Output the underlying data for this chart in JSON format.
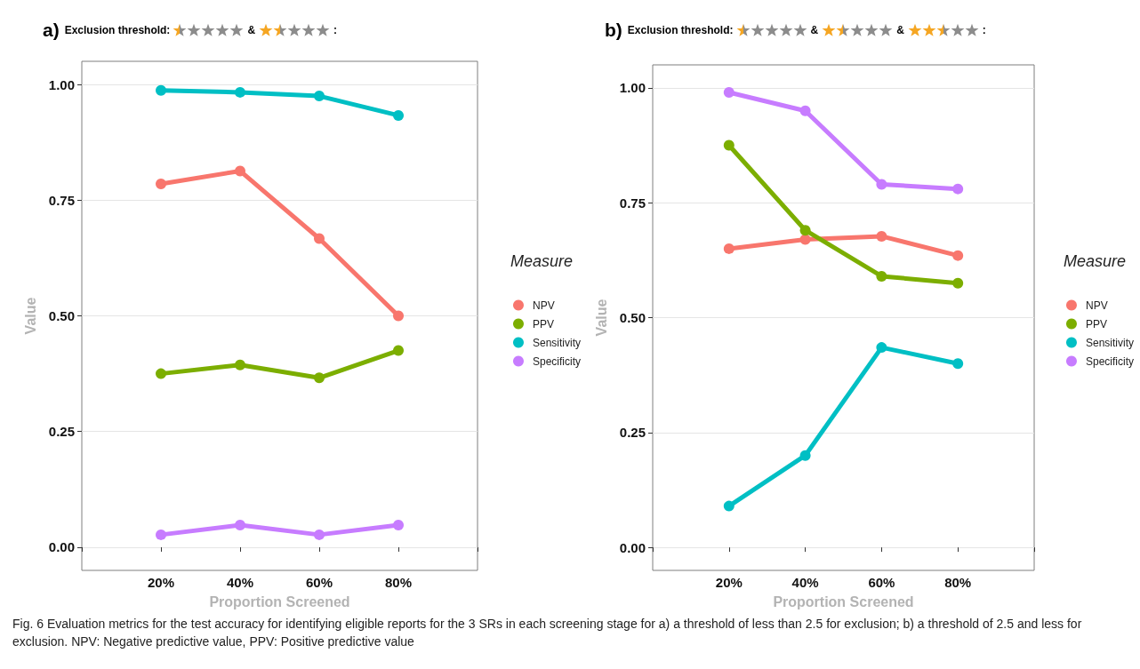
{
  "chart_data": [
    {
      "type": "line",
      "title": "a)",
      "subtitle": "Exclusion threshold:",
      "annotations": [
        "&",
        ":"
      ],
      "xlabel": "Proportion Screened",
      "ylabel": "Value",
      "legend_title": "Measure",
      "categories": [
        "20%",
        "40%",
        "60%",
        "80%"
      ],
      "series": [
        {
          "name": "NPV",
          "color": "#f8766d",
          "values": [
            0.785,
            0.813,
            0.667,
            0.5
          ]
        },
        {
          "name": "PPV",
          "color": "#7cae00",
          "values": [
            0.375,
            0.394,
            0.366,
            0.425
          ]
        },
        {
          "name": "Sensitivity",
          "color": "#00bfc4",
          "values": [
            0.987,
            0.983,
            0.975,
            0.933
          ]
        },
        {
          "name": "Specificity",
          "color": "#c77cff",
          "values": [
            0.027,
            0.048,
            0.027,
            0.048
          ]
        }
      ],
      "ylim": [
        -0.05,
        1.05
      ],
      "yticks": [
        {
          "value": 0,
          "label": "0.00"
        },
        {
          "value": 0.25,
          "label": "0.25"
        },
        {
          "value": 0.5,
          "label": "0.50"
        },
        {
          "value": 0.75,
          "label": "0.75"
        },
        {
          "value": 1,
          "label": "1.00"
        }
      ],
      "grid": "y",
      "legend": "right",
      "marker": "circle",
      "line_style": "solid"
    },
    {
      "type": "line",
      "title": "b)",
      "subtitle": "Exclusion threshold:",
      "annotations": [
        "&",
        "&",
        ":"
      ],
      "xlabel": "Proportion Screened",
      "ylabel": "Value",
      "legend_title": "Measure",
      "categories": [
        "20%",
        "40%",
        "60%",
        "80%"
      ],
      "series": [
        {
          "name": "NPV",
          "color": "#f8766d",
          "values": [
            0.65,
            0.67,
            0.677,
            0.635
          ]
        },
        {
          "name": "PPV",
          "color": "#7cae00",
          "values": [
            0.875,
            0.69,
            0.59,
            0.575
          ]
        },
        {
          "name": "Sensitivity",
          "color": "#00bfc4",
          "values": [
            0.09,
            0.2,
            0.435,
            0.4
          ]
        },
        {
          "name": "Specificity",
          "color": "#c77cff",
          "values": [
            0.99,
            0.95,
            0.79,
            0.78
          ]
        }
      ],
      "ylim": [
        -0.05,
        1.05
      ],
      "yticks": [
        {
          "value": 0,
          "label": "0.00"
        },
        {
          "value": 0.25,
          "label": "0.25"
        },
        {
          "value": 0.5,
          "label": "0.50"
        },
        {
          "value": 0.75,
          "label": "0.75"
        },
        {
          "value": 1,
          "label": "1.00"
        }
      ],
      "grid": "y",
      "legend": "right",
      "marker": "circle",
      "line_style": "solid"
    },
    {
      "type": "other",
      "annotations": [
        "Fig. 6 Evaluation metrics for the test accuracy for identifying eligible reports for the 3 SRs in each screening stage for a) a threshold of less than 2.5 for exclusion; b) a threshold of 2.5 and less for exclusion. NPV: Negative predictive value, PPV: Positive predictive value"
      ]
    }
  ]
}
